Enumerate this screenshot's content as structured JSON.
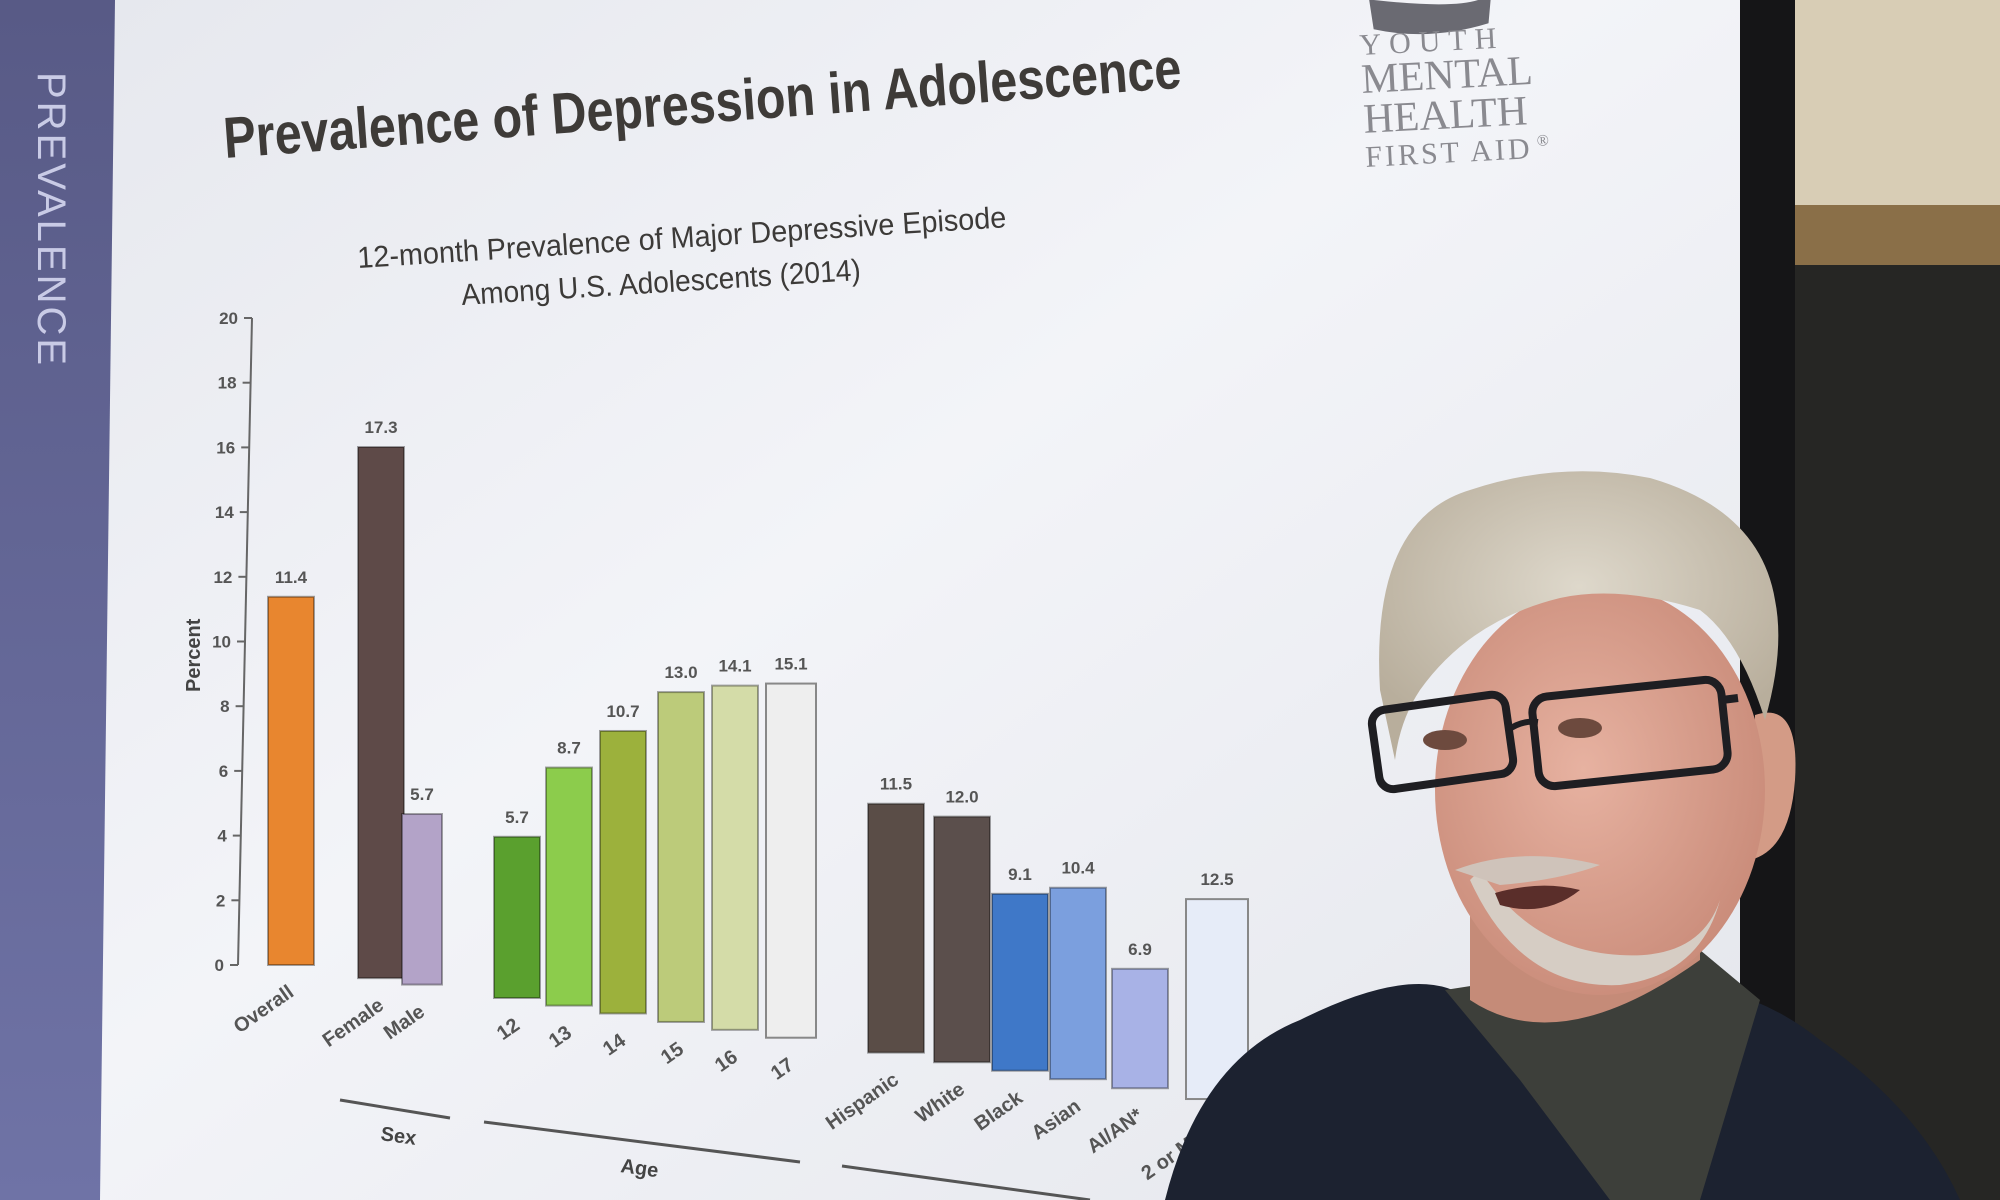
{
  "slide": {
    "title": "Prevalence of Depression in Adolescence",
    "side_label": "PREVALENCE",
    "logo": [
      "YOUTH",
      "MENTAL",
      "HEALTH",
      "FIRST AID"
    ],
    "logo_mark": "®"
  },
  "chart_data": {
    "type": "bar",
    "title": "12-month Prevalence of Major Depressive Episode",
    "subtitle": "Among U.S. Adolescents (2014)",
    "ylabel": "Percent",
    "ylim": [
      0,
      20
    ],
    "yticks": [
      0,
      2,
      4,
      6,
      8,
      10,
      12,
      14,
      16,
      18,
      20
    ],
    "categories": [
      "Overall",
      "Female",
      "Male",
      "12",
      "13",
      "14",
      "15",
      "16",
      "17",
      "Hispanic",
      "White",
      "Black",
      "Asian",
      "AI/AN*",
      "2 or More"
    ],
    "values": [
      11.4,
      17.3,
      5.7,
      5.7,
      8.7,
      10.7,
      13.0,
      14.1,
      15.1,
      11.5,
      12.0,
      9.1,
      10.4,
      6.9,
      12.5
    ],
    "value_labels": [
      "11.4",
      "17.3",
      "5.7",
      "5.7",
      "8.7",
      "10.7",
      "13.0",
      "14.1",
      "15.1",
      "11.5",
      "12.0",
      "9.1",
      "10.4",
      "6.9",
      "12.5"
    ],
    "group_labels": [
      "Sex",
      "Age"
    ],
    "colors": [
      "#e8862f",
      "#5e4a48",
      "#b3a3c8",
      "#5aa02e",
      "#8ccc4c",
      "#9cb13c",
      "#bccb7a",
      "#d4dca8",
      "#eeeeee",
      "#5a4d47",
      "#5b4f4c",
      "#3f78c8",
      "#7b9fde",
      "#a8b2e6",
      "#e6ecf8"
    ]
  }
}
